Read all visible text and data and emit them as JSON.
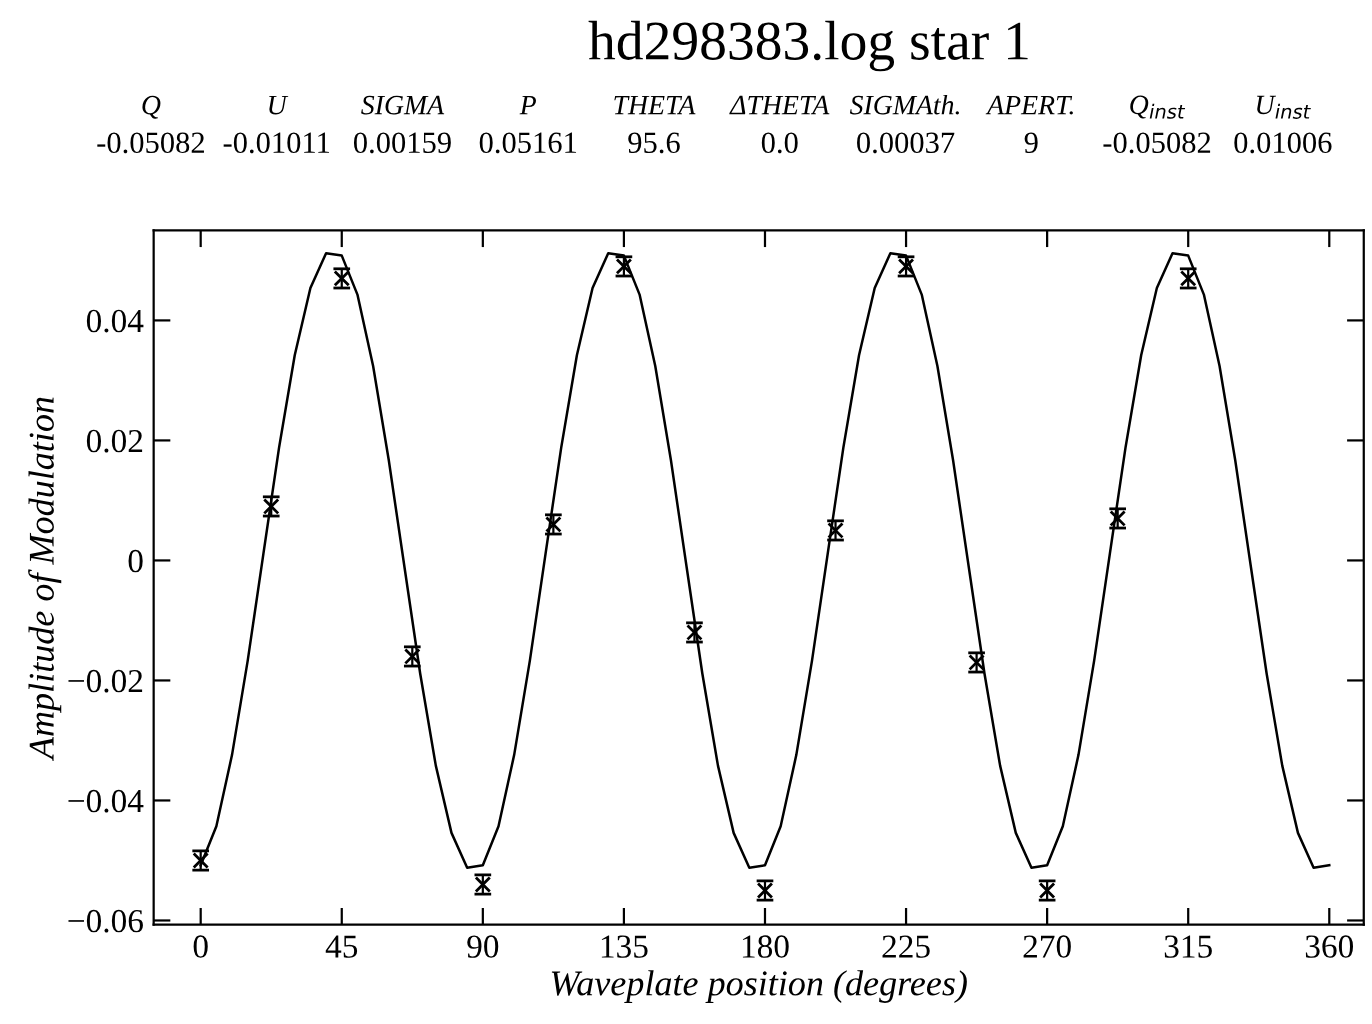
{
  "chart_data": {
    "type": "line",
    "title": "hd298383.log star 1",
    "xlabel": "Waveplate position (degrees)",
    "ylabel": "Amplitude of Modulation",
    "xlim": [
      -15,
      371
    ],
    "ylim": [
      -0.0607,
      0.055
    ],
    "xticks": [
      0,
      45,
      90,
      135,
      180,
      225,
      270,
      315,
      360
    ],
    "yticks": [
      -0.06,
      -0.04,
      -0.02,
      0,
      0.02,
      0.04
    ],
    "grid": false,
    "legend": false,
    "annotations": [
      "Q",
      "U",
      "SIGMA",
      "P",
      "THETA",
      "ΔTHETA",
      "SIGMAth.",
      "APERT.",
      "Q$_{inst}$",
      "U$_{inst}$",
      "-0.05082",
      "-0.01011",
      "0.00159",
      "0.05161",
      "95.6",
      "0.0",
      "0.00037",
      "9",
      "-0.05082",
      "0.01006"
    ],
    "series": [
      {
        "color": "#000000",
        "marker": "none",
        "line_style": "solid",
        "x": [
          0,
          5,
          10,
          15,
          20,
          25,
          30,
          35,
          40,
          45,
          50,
          55,
          60,
          65,
          70,
          75,
          80,
          85,
          90,
          95,
          100,
          105,
          110,
          115,
          120,
          125,
          130,
          135,
          140,
          145,
          150,
          155,
          160,
          165,
          170,
          175,
          180,
          185,
          190,
          195,
          200,
          205,
          210,
          215,
          220,
          225,
          230,
          235,
          240,
          245,
          250,
          255,
          260,
          265,
          270,
          275,
          280,
          285,
          290,
          295,
          300,
          305,
          310,
          315,
          320,
          325,
          330,
          335,
          340,
          345,
          350,
          355,
          360
        ],
        "values": [
          -0.0508,
          -0.0443,
          -0.0324,
          -0.0167,
          0.0011,
          0.0188,
          0.0342,
          0.0454,
          0.0512,
          0.0508,
          0.0443,
          0.0324,
          0.0167,
          -0.0011,
          -0.0188,
          -0.0342,
          -0.0454,
          -0.0512,
          -0.0508,
          -0.0443,
          -0.0324,
          -0.0167,
          0.0011,
          0.0188,
          0.0342,
          0.0454,
          0.0512,
          0.0508,
          0.0443,
          0.0324,
          0.0167,
          -0.0011,
          -0.0188,
          -0.0342,
          -0.0454,
          -0.0512,
          -0.0508,
          -0.0443,
          -0.0324,
          -0.0167,
          0.0011,
          0.0188,
          0.0342,
          0.0454,
          0.0512,
          0.0508,
          0.0443,
          0.0324,
          0.0167,
          -0.0011,
          -0.0188,
          -0.0342,
          -0.0454,
          -0.0512,
          -0.0508,
          -0.0443,
          -0.0324,
          -0.0167,
          0.0011,
          0.0188,
          0.0342,
          0.0454,
          0.0512,
          0.0508,
          0.0443,
          0.0324,
          0.0167,
          -0.0011,
          -0.0188,
          -0.0342,
          -0.0454,
          -0.0512,
          -0.0508
        ]
      },
      {
        "type": "scatter",
        "color": "#000000",
        "marker": "cross",
        "x": [
          0,
          22.5,
          45,
          67.5,
          90,
          112.5,
          135,
          157.5,
          180,
          202.5,
          225,
          247.5,
          270,
          292.5,
          315
        ],
        "values": [
          -0.05,
          0.009,
          0.047,
          -0.016,
          -0.054,
          0.006,
          0.049,
          -0.012,
          -0.055,
          0.005,
          0.049,
          -0.017,
          -0.055,
          0.007,
          0.047
        ],
        "errors": [
          0.0016,
          0.0016,
          0.0016,
          0.0016,
          0.0016,
          0.0016,
          0.0016,
          0.0016,
          0.0016,
          0.0016,
          0.0016,
          0.0016,
          0.0016,
          0.0016,
          0.0016
        ]
      }
    ]
  }
}
